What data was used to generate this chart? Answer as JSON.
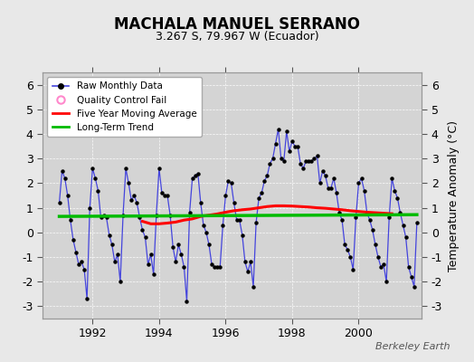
{
  "title": "MACHALA MANUEL SERRANO",
  "subtitle": "3.267 S, 79.967 W (Ecuador)",
  "ylabel": "Temperature Anomaly (°C)",
  "watermark": "Berkeley Earth",
  "ylim": [
    -3.5,
    6.5
  ],
  "yticks": [
    -3,
    -2,
    -1,
    0,
    1,
    2,
    3,
    4,
    5,
    6
  ],
  "xlim": [
    1990.5,
    2001.9
  ],
  "xticks": [
    1992,
    1994,
    1996,
    1998,
    2000
  ],
  "background_color": "#e8e8e8",
  "plot_bg_color": "#d4d4d4",
  "raw_color": "#4444dd",
  "raw_marker_color": "#000000",
  "moving_avg_color": "#ff0000",
  "trend_color": "#00bb00",
  "qc_fail_color": "#ff88cc",
  "raw_data": {
    "dates": [
      1991.0,
      1991.083,
      1991.167,
      1991.25,
      1991.333,
      1991.417,
      1991.5,
      1991.583,
      1991.667,
      1991.75,
      1991.833,
      1991.917,
      1992.0,
      1992.083,
      1992.167,
      1992.25,
      1992.333,
      1992.417,
      1992.5,
      1992.583,
      1992.667,
      1992.75,
      1992.833,
      1992.917,
      1993.0,
      1993.083,
      1993.167,
      1993.25,
      1993.333,
      1993.417,
      1993.5,
      1993.583,
      1993.667,
      1993.75,
      1993.833,
      1993.917,
      1994.0,
      1994.083,
      1994.167,
      1994.25,
      1994.333,
      1994.417,
      1994.5,
      1994.583,
      1994.667,
      1994.75,
      1994.833,
      1994.917,
      1995.0,
      1995.083,
      1995.167,
      1995.25,
      1995.333,
      1995.417,
      1995.5,
      1995.583,
      1995.667,
      1995.75,
      1995.833,
      1995.917,
      1996.0,
      1996.083,
      1996.167,
      1996.25,
      1996.333,
      1996.417,
      1996.5,
      1996.583,
      1996.667,
      1996.75,
      1996.833,
      1996.917,
      1997.0,
      1997.083,
      1997.167,
      1997.25,
      1997.333,
      1997.417,
      1997.5,
      1997.583,
      1997.667,
      1997.75,
      1997.833,
      1997.917,
      1998.0,
      1998.083,
      1998.167,
      1998.25,
      1998.333,
      1998.417,
      1998.5,
      1998.583,
      1998.667,
      1998.75,
      1998.833,
      1998.917,
      1999.0,
      1999.083,
      1999.167,
      1999.25,
      1999.333,
      1999.417,
      1999.5,
      1999.583,
      1999.667,
      1999.75,
      1999.833,
      1999.917,
      2000.0,
      2000.083,
      2000.167,
      2000.25,
      2000.333,
      2000.417,
      2000.5,
      2000.583,
      2000.667,
      2000.75,
      2000.833,
      2000.917,
      2001.0,
      2001.083,
      2001.167,
      2001.25,
      2001.333,
      2001.417,
      2001.5,
      2001.583,
      2001.667,
      2001.75
    ],
    "values": [
      1.2,
      2.5,
      2.2,
      1.5,
      0.5,
      -0.3,
      -0.8,
      -1.3,
      -1.2,
      -1.5,
      -2.7,
      1.0,
      2.6,
      2.2,
      1.7,
      0.6,
      0.7,
      0.6,
      -0.1,
      -0.5,
      -1.2,
      -0.9,
      -2.0,
      0.7,
      2.6,
      2.0,
      1.3,
      1.5,
      1.2,
      0.6,
      0.1,
      -0.2,
      -1.3,
      -0.9,
      -1.7,
      0.7,
      2.6,
      1.6,
      1.5,
      1.5,
      0.7,
      -0.6,
      -1.2,
      -0.5,
      -0.9,
      -1.4,
      -2.8,
      0.8,
      2.2,
      2.3,
      2.4,
      1.2,
      0.3,
      0.0,
      -0.5,
      -1.3,
      -1.4,
      -1.4,
      -1.4,
      0.3,
      1.5,
      2.1,
      2.0,
      1.2,
      0.5,
      0.5,
      -0.1,
      -1.2,
      -1.6,
      -1.2,
      -2.2,
      0.4,
      1.4,
      1.6,
      2.1,
      2.3,
      2.8,
      3.0,
      3.6,
      4.2,
      3.0,
      2.9,
      4.1,
      3.3,
      3.7,
      3.5,
      3.5,
      2.8,
      2.6,
      2.9,
      2.9,
      2.9,
      3.0,
      3.1,
      2.0,
      2.5,
      2.3,
      1.8,
      1.8,
      2.2,
      1.6,
      0.8,
      0.5,
      -0.5,
      -0.7,
      -1.0,
      -1.5,
      0.6,
      2.0,
      2.2,
      1.7,
      0.8,
      0.5,
      0.1,
      -0.5,
      -1.0,
      -1.4,
      -1.3,
      -2.0,
      0.6,
      2.2,
      1.7,
      1.4,
      0.8,
      0.3,
      -0.2,
      -1.4,
      -1.8,
      -2.2,
      0.4
    ]
  },
  "moving_avg": {
    "dates": [
      1993.5,
      1993.75,
      1994.0,
      1994.25,
      1994.5,
      1994.75,
      1995.0,
      1995.25,
      1995.5,
      1995.75,
      1996.0,
      1996.25,
      1996.5,
      1996.75,
      1997.0,
      1997.25,
      1997.5,
      1997.75,
      1998.0,
      1998.25,
      1998.5,
      1998.75,
      1999.0,
      1999.25,
      1999.5,
      1999.75,
      2000.0,
      2000.25,
      2000.5,
      2000.75,
      2001.0
    ],
    "values": [
      0.45,
      0.35,
      0.35,
      0.38,
      0.42,
      0.5,
      0.55,
      0.65,
      0.7,
      0.75,
      0.82,
      0.88,
      0.92,
      0.95,
      1.0,
      1.05,
      1.08,
      1.08,
      1.07,
      1.05,
      1.03,
      1.0,
      0.98,
      0.95,
      0.92,
      0.88,
      0.85,
      0.82,
      0.8,
      0.78,
      0.76
    ]
  },
  "trend": {
    "dates": [
      1991.0,
      2001.75
    ],
    "values": [
      0.65,
      0.72
    ]
  }
}
